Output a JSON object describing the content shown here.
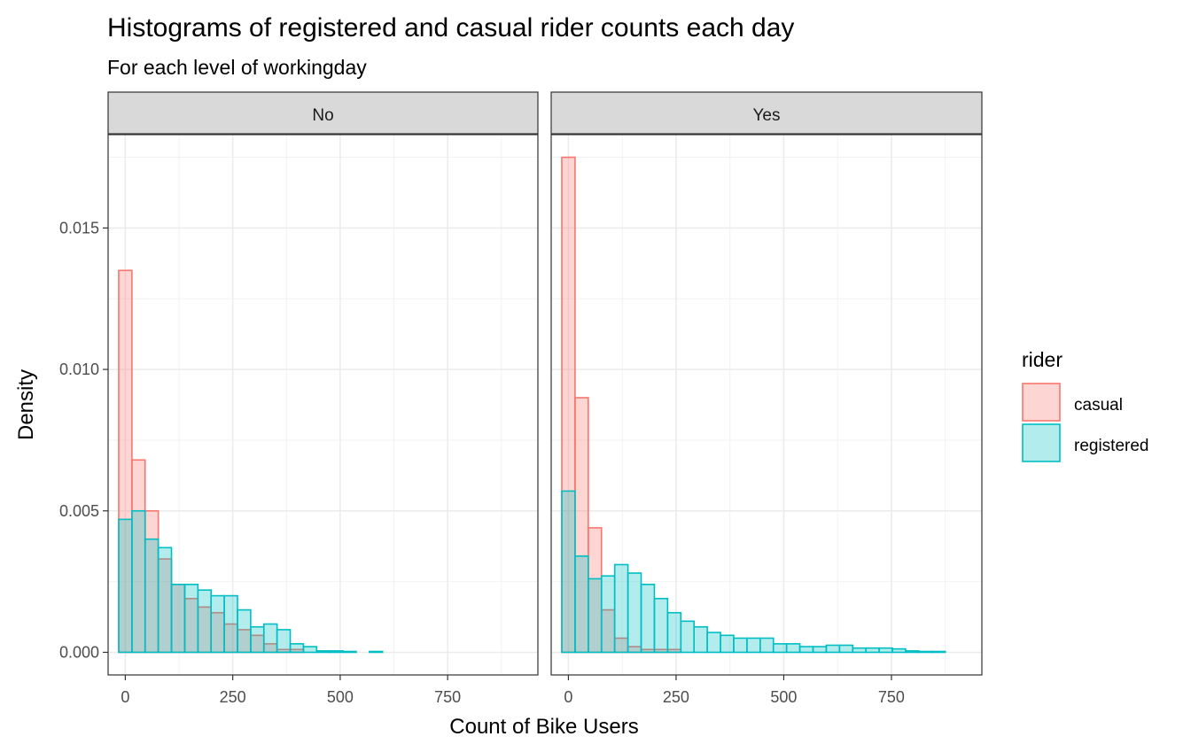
{
  "chart_data": {
    "type": "histogram",
    "title": "Histograms of registered and casual rider counts each day",
    "subtitle": "For each level of workingday",
    "xlabel": "Count of Bike Users",
    "ylabel": "Density",
    "xlim": [
      -40,
      960
    ],
    "ylim": [
      -0.0008,
      0.0183
    ],
    "x_ticks": [
      0,
      250,
      500,
      750
    ],
    "x_tick_labels": [
      "0",
      "250",
      "500",
      "750"
    ],
    "y_ticks": [
      0,
      0.005,
      0.01,
      0.015
    ],
    "y_tick_labels": [
      "0.000",
      "0.005",
      "0.010",
      "0.015"
    ],
    "grid": true,
    "bin_width": 30.7,
    "bin_start": -15.3,
    "legend": {
      "title": "rider",
      "position": "right",
      "entries": [
        {
          "label": "casual",
          "fill": "#F8766D",
          "stroke": "#F8766D"
        },
        {
          "label": "registered",
          "fill": "#00BFC4",
          "stroke": "#00BFC4"
        }
      ]
    },
    "panels": [
      {
        "label": "No",
        "series": [
          {
            "name": "casual",
            "values": [
              0.0135,
              0.0068,
              0.005,
              0.0033,
              0.0024,
              0.0019,
              0.0016,
              0.0014,
              0.001,
              0.0008,
              0.0006,
              0.0003,
              0.0001,
              0.0001,
              0,
              0,
              0,
              0,
              0,
              0,
              0,
              0,
              0,
              0,
              0,
              0,
              0,
              0,
              0
            ]
          },
          {
            "name": "registered",
            "values": [
              0.0047,
              0.005,
              0.004,
              0.0037,
              0.0024,
              0.0024,
              0.0022,
              0.002,
              0.002,
              0.0015,
              0.0009,
              0.001,
              0.0008,
              0.0003,
              0.0002,
              5e-05,
              5e-05,
              3e-05,
              0,
              3e-05,
              0,
              0,
              0,
              0,
              0,
              0,
              0,
              0,
              0
            ]
          }
        ]
      },
      {
        "label": "Yes",
        "series": [
          {
            "name": "casual",
            "values": [
              0.0175,
              0.009,
              0.0044,
              0.0015,
              0.0005,
              0.0002,
              0.0001,
              0.0001,
              0.0001,
              0,
              0,
              0,
              0,
              0,
              0,
              0,
              0,
              0,
              0,
              0,
              0,
              0,
              0,
              0,
              0,
              0,
              0,
              0,
              0
            ]
          },
          {
            "name": "registered",
            "values": [
              0.0057,
              0.0034,
              0.0026,
              0.0027,
              0.0031,
              0.0028,
              0.0024,
              0.0019,
              0.0014,
              0.0011,
              0.0009,
              0.0007,
              0.0006,
              0.0005,
              0.0005,
              0.0005,
              0.0003,
              0.0003,
              0.0002,
              0.0002,
              0.00025,
              0.00025,
              0.00015,
              0.00015,
              0.00015,
              0.00012,
              5e-05,
              3e-05,
              3e-05
            ]
          }
        ]
      }
    ]
  }
}
